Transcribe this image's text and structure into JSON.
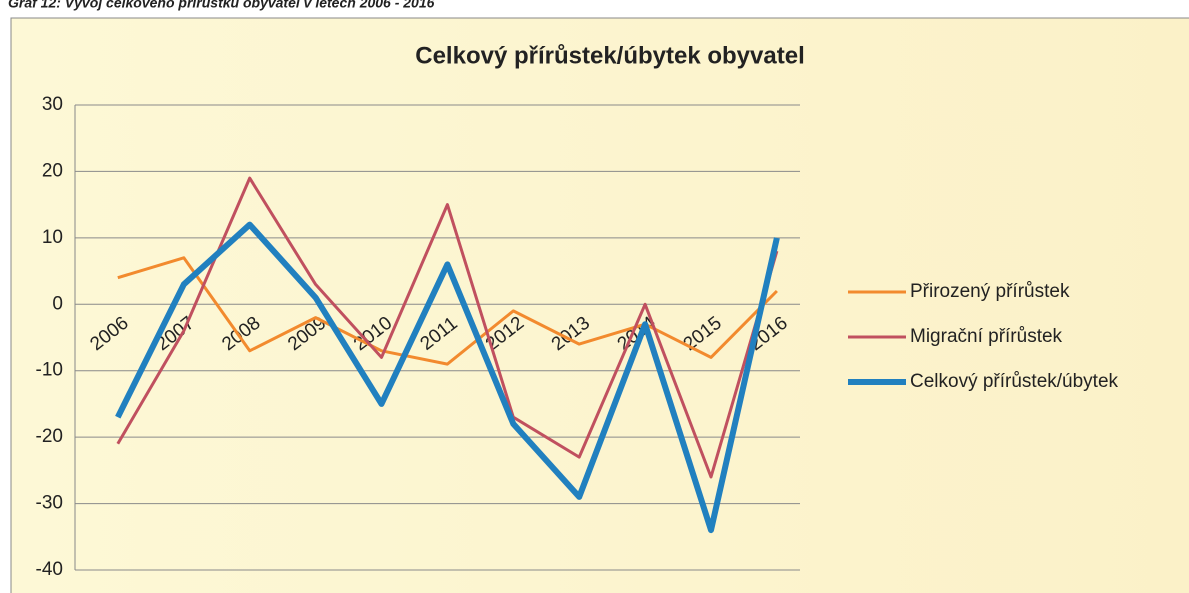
{
  "chart_data": {
    "type": "line",
    "caption": "Graf 12: Vývoj celkového přírůstku obyvatel v letech 2006 - 2016",
    "title": "Celkový přírůstek/úbytek obyvatel",
    "categories": [
      "2006",
      "2007",
      "2008",
      "2009",
      "2010",
      "2011",
      "2012",
      "2013",
      "2014",
      "2015",
      "2016"
    ],
    "series": [
      {
        "name": "Přirozený přírůstek",
        "color": "#f28a2e",
        "values": [
          4,
          7,
          -7,
          -2,
          -7,
          -9,
          -1,
          -6,
          -3,
          -8,
          2
        ]
      },
      {
        "name": "Migrační přírůstek",
        "color": "#c0505f",
        "values": [
          -21,
          -4,
          19,
          3,
          -8,
          15,
          -17,
          -23,
          0,
          -26,
          8
        ]
      },
      {
        "name": "Celkový přírůstek/úbytek",
        "color": "#2180bf",
        "values": [
          -17,
          3,
          12,
          1,
          -15,
          6,
          -18,
          -29,
          -3,
          -34,
          10
        ]
      }
    ],
    "ylim": [
      -40,
      30
    ],
    "yticks": [
      -40,
      -30,
      -20,
      -10,
      0,
      10,
      20,
      30
    ],
    "grid": true,
    "legend": "right"
  }
}
